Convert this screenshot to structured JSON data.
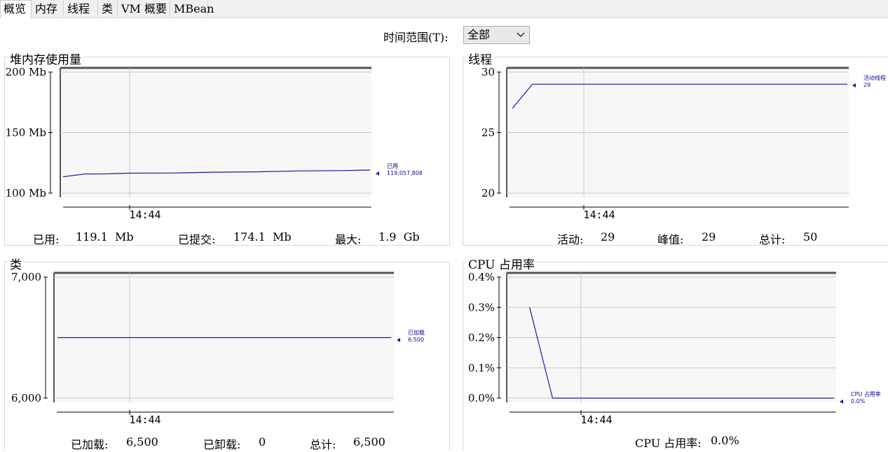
{
  "tabs": [
    {
      "label": "概览",
      "active": true
    },
    {
      "label": "内存"
    },
    {
      "label": "线程"
    },
    {
      "label": "类"
    },
    {
      "label": "VM 概要"
    },
    {
      "label": "MBean"
    }
  ],
  "time_range": {
    "label": "时间范围(T):",
    "selected": "全部"
  },
  "colors": {
    "series": "#1a1aa6",
    "grid": "#c8c8c8",
    "plot_bg": "#f7f7f7"
  },
  "panels": {
    "heap": {
      "title": "堆内存使用量",
      "stats": {
        "used_label": "已用:",
        "used_value": "119.1  Mb",
        "committed_label": "已提交:",
        "committed_value": "174.1  Mb",
        "max_label": "最大:",
        "max_value": "1.9  Gb"
      }
    },
    "threads": {
      "title": "线程",
      "stats": {
        "live_label": "活动:",
        "live_value": "29",
        "peak_label": "峰值:",
        "peak_value": "29",
        "total_label": "总计:",
        "total_value": "50"
      }
    },
    "classes": {
      "title": "类",
      "stats": {
        "loaded_label": "已加载:",
        "loaded_value": "6,500",
        "unloaded_label": "已卸载:",
        "unloaded_value": "0",
        "total_label": "总计:",
        "total_value": "6,500"
      }
    },
    "cpu": {
      "title": "CPU 占用率",
      "stats": {
        "cpu_label": "CPU 占用率:",
        "cpu_value": "0.0%"
      }
    }
  },
  "chart_data": [
    {
      "id": "heap",
      "type": "line",
      "yticks": [
        "200 Mb",
        "150 Mb",
        "100 Mb"
      ],
      "ylim": [
        100,
        200
      ],
      "xticks": [
        "14:44"
      ],
      "series": [
        {
          "name": "已用",
          "legend_value": "119,057,808",
          "x": [
            0,
            0.07,
            0.14,
            0.21,
            0.35,
            0.49,
            0.63,
            0.77,
            0.91,
            1.0
          ],
          "values": [
            113.5,
            115.8,
            115.9,
            116.5,
            116.6,
            117.3,
            117.6,
            118.3,
            118.6,
            119.1
          ]
        }
      ]
    },
    {
      "id": "threads",
      "type": "line",
      "yticks": [
        "30",
        "25",
        "20"
      ],
      "ylim": [
        20,
        30
      ],
      "xticks": [
        "14:44"
      ],
      "series": [
        {
          "name": "活动线程",
          "legend_value": "29",
          "x": [
            0,
            0.06,
            1.0
          ],
          "values": [
            27,
            29,
            29
          ]
        }
      ]
    },
    {
      "id": "classes",
      "type": "line",
      "yticks": [
        "7,000",
        "6,000"
      ],
      "ylim": [
        6000,
        7000
      ],
      "xticks": [
        "14:44"
      ],
      "series": [
        {
          "name": "已加载",
          "legend_value": "6,500",
          "x": [
            0,
            1.0
          ],
          "values": [
            6500,
            6500
          ]
        }
      ]
    },
    {
      "id": "cpu",
      "type": "line",
      "yticks": [
        "0.4%",
        "0.3%",
        "0.2%",
        "0.1%",
        "0.0%"
      ],
      "ylim": [
        0,
        0.4
      ],
      "xticks": [
        "14:44"
      ],
      "series": [
        {
          "name": "CPU 占用率",
          "legend_value": "0.0%",
          "x": [
            0.07,
            0.14,
            1.0
          ],
          "values": [
            0.3,
            0.0,
            0.0
          ]
        }
      ]
    }
  ]
}
